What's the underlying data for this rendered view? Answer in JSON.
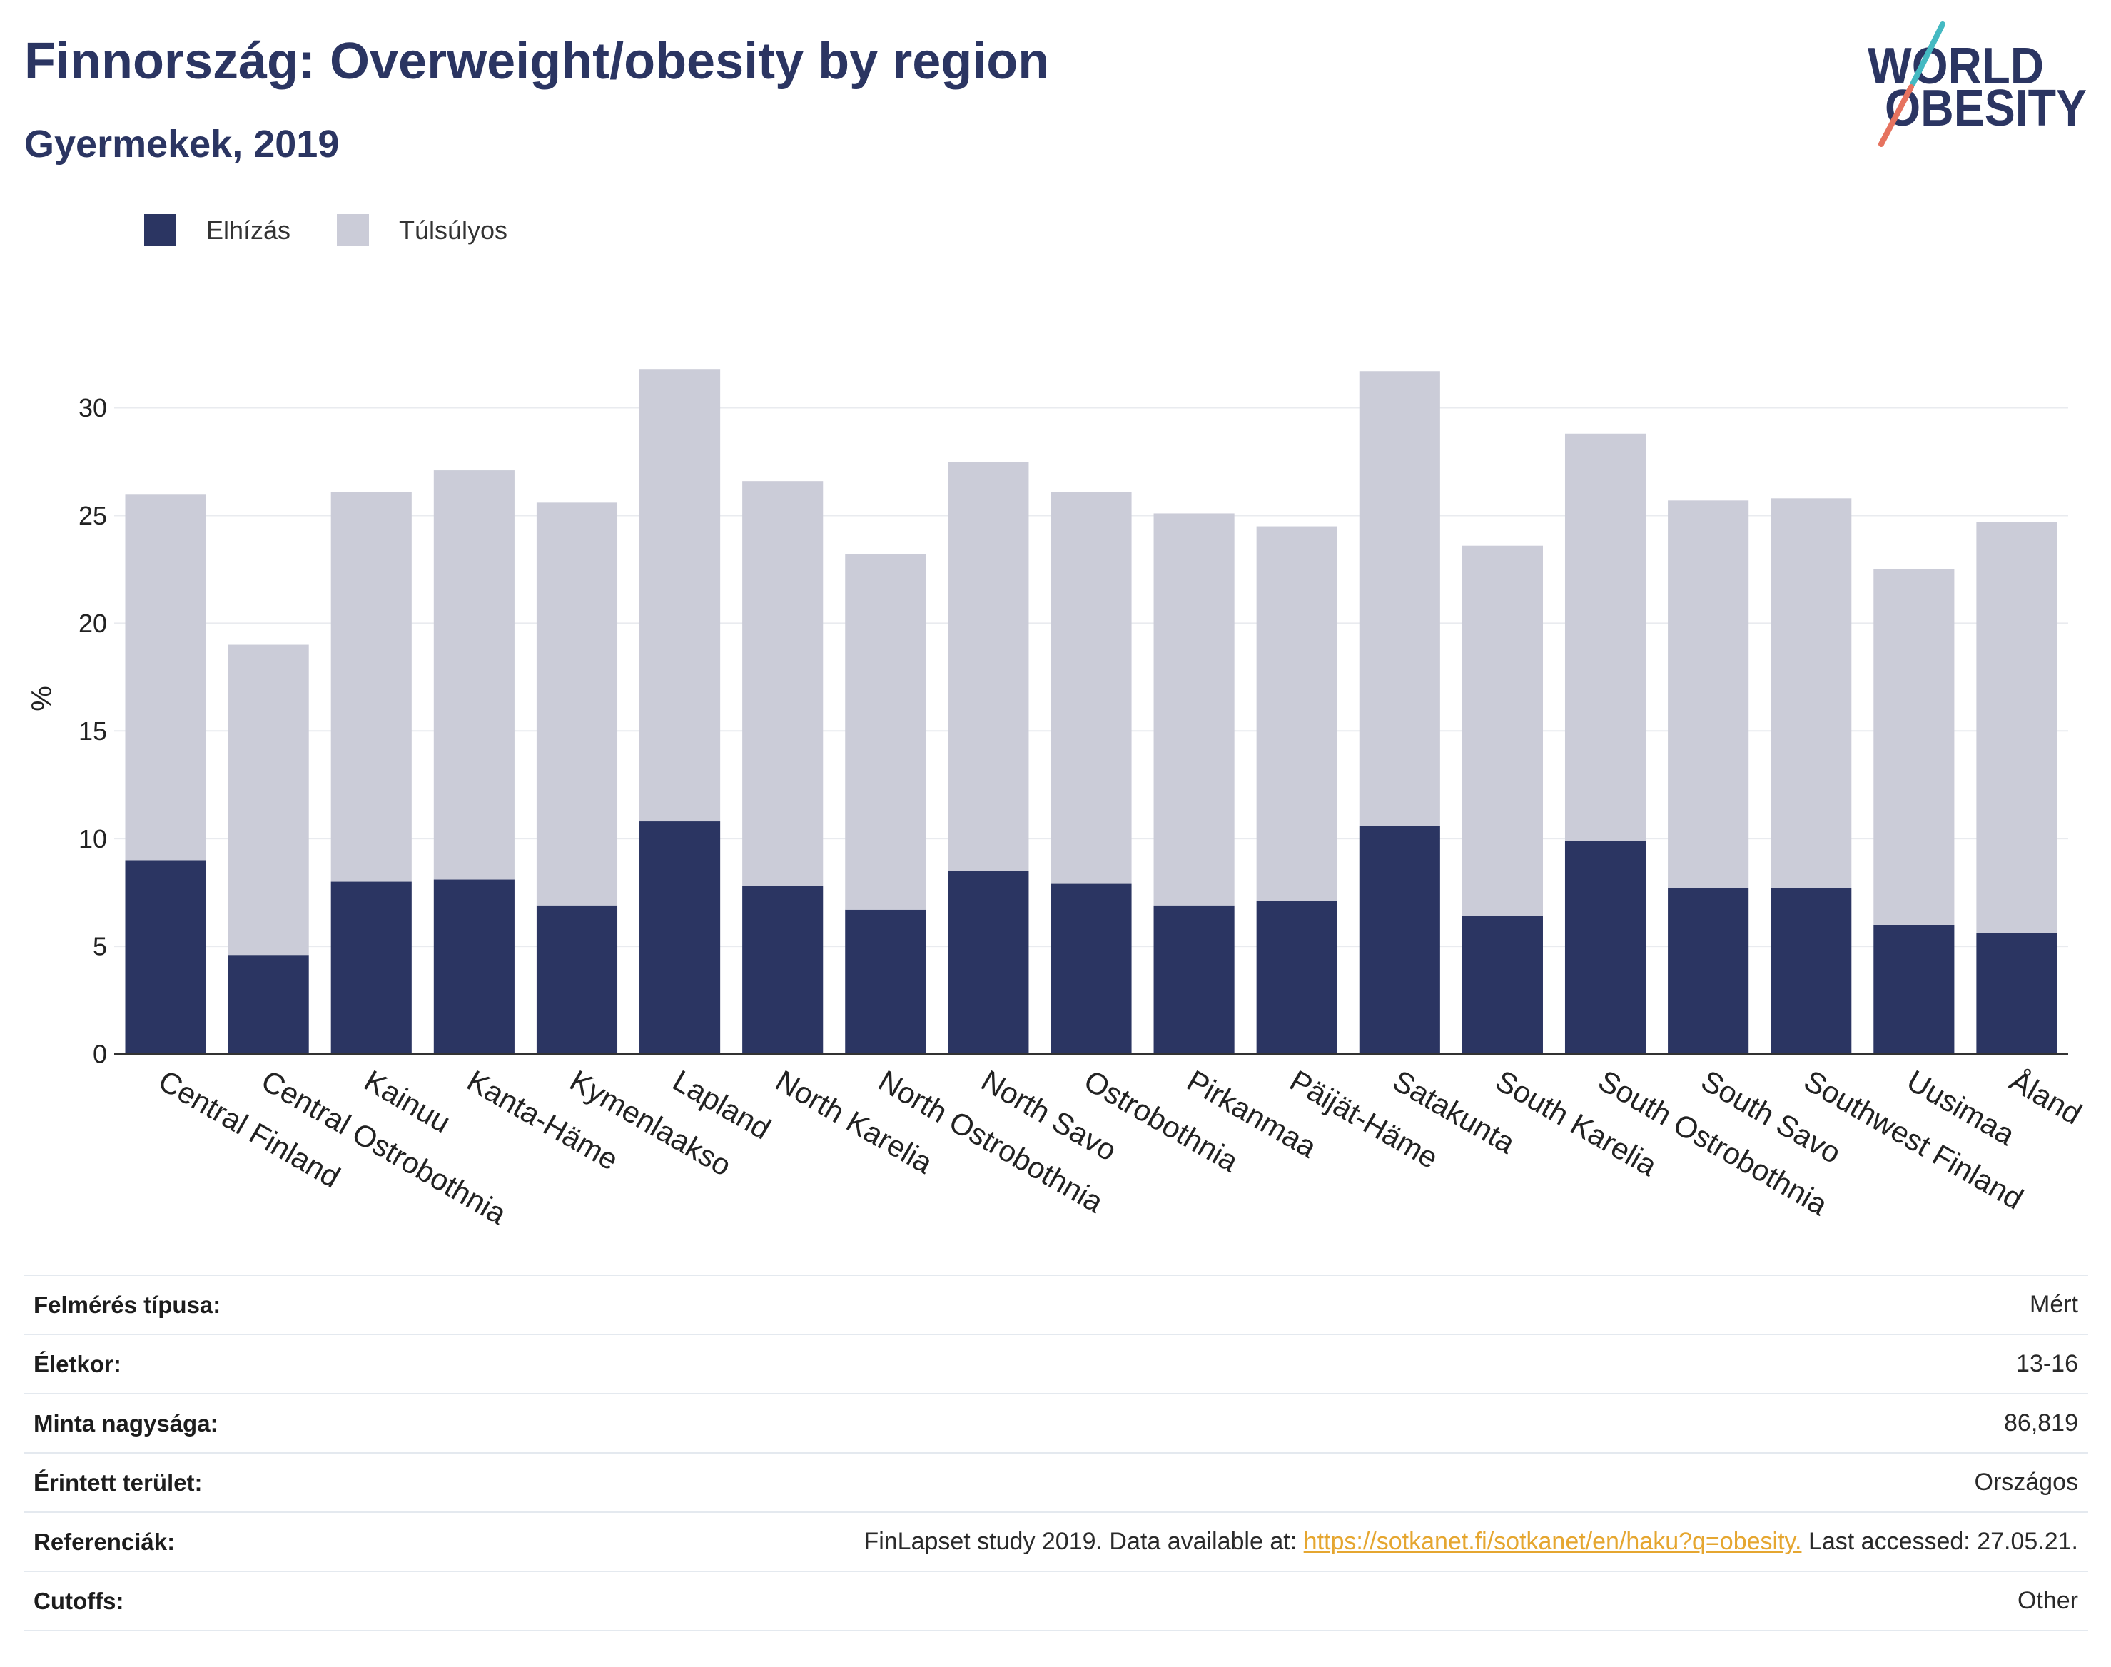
{
  "title": "Finnország: Overweight/obesity by region",
  "subtitle": "Gyermekek, 2019",
  "logo": {
    "line1": "WORLD",
    "line2": "OBESITY",
    "colors": {
      "text": "#2b3562",
      "accent_top": "#44b9c2",
      "accent_bottom": "#e6735f"
    }
  },
  "colors": {
    "link": "#e5a630"
  },
  "chart_data": {
    "type": "bar",
    "stacked": true,
    "categories": [
      "Central Finland",
      "Central Ostrobothnia",
      "Kainuu",
      "Kanta-Häme",
      "Kymenlaakso",
      "Lapland",
      "North Karelia",
      "North Ostrobothnia",
      "North Savo",
      "Ostrobothnia",
      "Pirkanmaa",
      "Päijät-Häme",
      "Satakunta",
      "South Karelia",
      "South Ostrobothnia",
      "South Savo",
      "Southwest Finland",
      "Uusimaa",
      "Åland"
    ],
    "series": [
      {
        "name": "Elhízás",
        "color": "#2b3562",
        "values": [
          9.0,
          4.6,
          8.0,
          8.1,
          6.9,
          10.8,
          7.8,
          6.7,
          8.5,
          7.9,
          6.9,
          7.1,
          10.6,
          6.4,
          9.9,
          7.7,
          7.7,
          6.0,
          5.6
        ]
      },
      {
        "name": "Túlsúlyos",
        "color": "#cbccd8",
        "values": [
          17.0,
          14.4,
          18.1,
          19.0,
          18.7,
          21.0,
          18.8,
          16.5,
          19.0,
          18.2,
          18.2,
          17.4,
          21.1,
          17.2,
          18.9,
          18.0,
          18.1,
          16.5,
          19.1
        ]
      }
    ],
    "ylabel": "%",
    "yticks": [
      0,
      5,
      10,
      15,
      20,
      25,
      30
    ],
    "ylim": [
      0,
      33
    ],
    "grid": true,
    "legend_position": "top-left"
  },
  "info_table": {
    "survey_type": {
      "label": "Felmérés típusa:",
      "value": "Mért"
    },
    "age": {
      "label": "Életkor:",
      "value": "13-16"
    },
    "sample_size": {
      "label": "Minta nagysága:",
      "value": "86,819"
    },
    "area_covered": {
      "label": "Érintett terület:",
      "value": "Országos"
    },
    "references": {
      "label": "Referenciák:",
      "text_before": "FinLapset study 2019. Data available at:",
      "link": "https://sotkanet.fi/sotkanet/en/haku?q=obesity.",
      "text_after": "Last accessed: 27.05.21."
    },
    "cutoffs": {
      "label": "Cutoffs:",
      "value": "Other"
    }
  }
}
